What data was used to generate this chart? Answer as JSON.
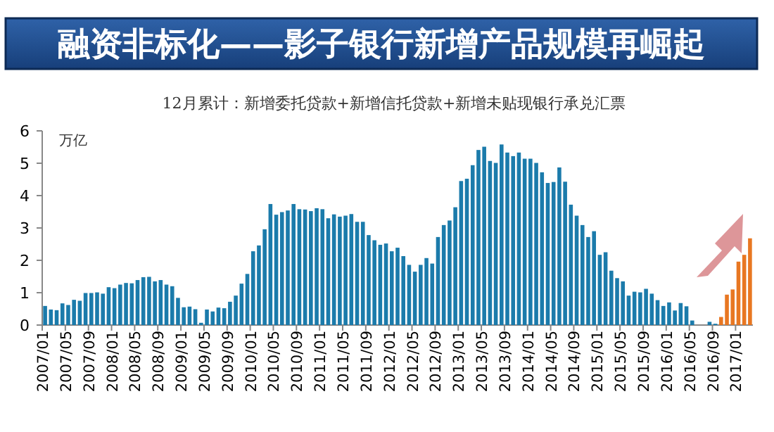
{
  "chart_data": {
    "type": "bar",
    "title": "融资非标化——影子银行新增产品规模再崛起",
    "subtitle": "12月累计：新增委托贷款+新增信托贷款+新增未贴现银行承兑汇票",
    "ylabel": "万亿",
    "categories": [
      "2007/01",
      null,
      null,
      null,
      "2007/05",
      null,
      null,
      null,
      "2007/09",
      null,
      null,
      null,
      "2008/01",
      null,
      null,
      null,
      "2008/05",
      null,
      null,
      null,
      "2008/09",
      null,
      null,
      null,
      "2009/01",
      null,
      null,
      null,
      "2009/05",
      null,
      null,
      null,
      "2009/09",
      null,
      null,
      null,
      "2010/01",
      null,
      null,
      null,
      "2010/05",
      null,
      null,
      null,
      "2010/09",
      null,
      null,
      null,
      "2011/01",
      null,
      null,
      null,
      "2011/05",
      null,
      null,
      null,
      "2011/09",
      null,
      null,
      null,
      "2012/01",
      null,
      null,
      null,
      "2012/05",
      null,
      null,
      null,
      "2012/09",
      null,
      null,
      null,
      "2013/01",
      null,
      null,
      null,
      "2013/05",
      null,
      null,
      null,
      "2013/09",
      null,
      null,
      null,
      "2014/01",
      null,
      null,
      null,
      "2014/05",
      null,
      null,
      null,
      "2014/09",
      null,
      null,
      null,
      "2015/01",
      null,
      null,
      null,
      "2015/05",
      null,
      null,
      null,
      "2015/09",
      null,
      null,
      null,
      "2016/01",
      null,
      null,
      null,
      "2016/05",
      null,
      null,
      null,
      "2016/09",
      null,
      null,
      null,
      "2017/01",
      null,
      null
    ],
    "values": [
      0.59,
      0.48,
      0.46,
      0.67,
      0.62,
      0.78,
      0.75,
      0.99,
      0.99,
      1.01,
      0.97,
      1.17,
      1.14,
      1.25,
      1.3,
      1.29,
      1.39,
      1.48,
      1.49,
      1.35,
      1.39,
      1.25,
      1.2,
      0.84,
      0.55,
      0.57,
      0.49,
      0.07,
      0.48,
      0.42,
      0.54,
      0.52,
      0.72,
      0.91,
      1.28,
      1.58,
      2.28,
      2.46,
      2.96,
      3.74,
      3.41,
      3.49,
      3.54,
      3.74,
      3.58,
      3.57,
      3.52,
      3.61,
      3.58,
      3.3,
      3.42,
      3.35,
      3.38,
      3.43,
      3.19,
      3.19,
      2.78,
      2.62,
      2.48,
      2.52,
      2.28,
      2.39,
      2.13,
      1.86,
      1.65,
      1.86,
      2.07,
      1.9,
      2.72,
      3.09,
      3.23,
      3.64,
      4.45,
      4.52,
      4.94,
      5.41,
      5.51,
      5.07,
      5.01,
      5.58,
      5.33,
      5.22,
      5.33,
      5.14,
      5.14,
      5.01,
      4.72,
      4.39,
      4.42,
      4.87,
      4.43,
      3.72,
      3.38,
      3.09,
      2.72,
      2.9,
      2.17,
      2.25,
      1.68,
      1.45,
      1.35,
      0.91,
      1.03,
      1.01,
      1.12,
      0.97,
      0.77,
      0.59,
      0.7,
      0.45,
      0.68,
      0.58,
      0.14,
      0.0,
      0.0,
      0.1,
      0.04,
      0.25,
      0.94,
      1.1,
      1.96,
      2.17,
      2.68
    ],
    "colors": [
      "#1b7bab",
      "#1b7bab",
      "#1b7bab",
      "#1b7bab",
      "#1b7bab",
      "#1b7bab",
      "#1b7bab",
      "#1b7bab",
      "#1b7bab",
      "#1b7bab",
      "#1b7bab",
      "#1b7bab",
      "#1b7bab",
      "#1b7bab",
      "#1b7bab",
      "#1b7bab",
      "#1b7bab",
      "#1b7bab",
      "#1b7bab",
      "#1b7bab",
      "#1b7bab",
      "#1b7bab",
      "#1b7bab",
      "#1b7bab",
      "#1b7bab",
      "#1b7bab",
      "#1b7bab",
      "#1b7bab",
      "#1b7bab",
      "#1b7bab",
      "#1b7bab",
      "#1b7bab",
      "#1b7bab",
      "#1b7bab",
      "#1b7bab",
      "#1b7bab",
      "#1b7bab",
      "#1b7bab",
      "#1b7bab",
      "#1b7bab",
      "#1b7bab",
      "#1b7bab",
      "#1b7bab",
      "#1b7bab",
      "#1b7bab",
      "#1b7bab",
      "#1b7bab",
      "#1b7bab",
      "#1b7bab",
      "#1b7bab",
      "#1b7bab",
      "#1b7bab",
      "#1b7bab",
      "#1b7bab",
      "#1b7bab",
      "#1b7bab",
      "#1b7bab",
      "#1b7bab",
      "#1b7bab",
      "#1b7bab",
      "#1b7bab",
      "#1b7bab",
      "#1b7bab",
      "#1b7bab",
      "#1b7bab",
      "#1b7bab",
      "#1b7bab",
      "#1b7bab",
      "#1b7bab",
      "#1b7bab",
      "#1b7bab",
      "#1b7bab",
      "#1b7bab",
      "#1b7bab",
      "#1b7bab",
      "#1b7bab",
      "#1b7bab",
      "#1b7bab",
      "#1b7bab",
      "#1b7bab",
      "#1b7bab",
      "#1b7bab",
      "#1b7bab",
      "#1b7bab",
      "#1b7bab",
      "#1b7bab",
      "#1b7bab",
      "#1b7bab",
      "#1b7bab",
      "#1b7bab",
      "#1b7bab",
      "#1b7bab",
      "#1b7bab",
      "#1b7bab",
      "#1b7bab",
      "#1b7bab",
      "#1b7bab",
      "#1b7bab",
      "#1b7bab",
      "#1b7bab",
      "#1b7bab",
      "#1b7bab",
      "#1b7bab",
      "#1b7bab",
      "#1b7bab",
      "#1b7bab",
      "#1b7bab",
      "#1b7bab",
      "#1b7bab",
      "#1b7bab",
      "#1b7bab",
      "#1b7bab",
      "#1b7bab",
      "#1b7bab",
      "#1b7bab",
      "#1b7bab",
      "#1b7bab",
      "#e87722",
      "#e87722",
      "#e87722",
      "#e87722",
      "#e87722",
      "#e87722"
    ],
    "ylim": [
      0,
      6
    ],
    "yticks": [
      0,
      1,
      2,
      3,
      4,
      5,
      6
    ],
    "grid": false
  }
}
